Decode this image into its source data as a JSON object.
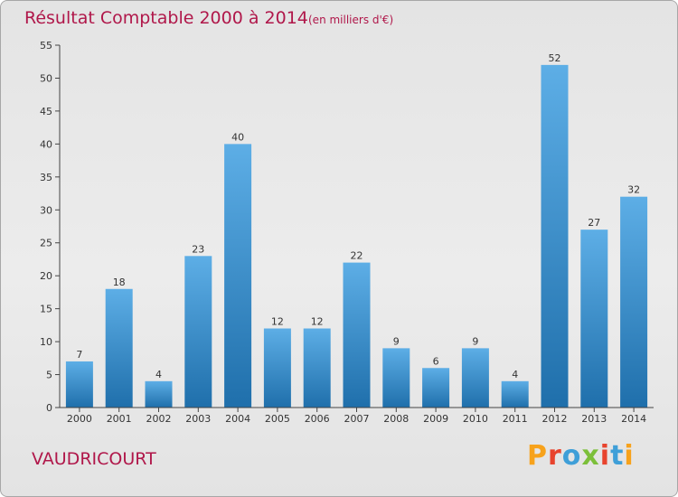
{
  "chart_data": {
    "type": "bar",
    "title": "Résultat Comptable 2000 à 2014",
    "subtitle": "(en milliers d'€)",
    "xlabel": "",
    "ylabel": "",
    "ylim": [
      0,
      55
    ],
    "yticks": [
      0,
      5,
      10,
      15,
      20,
      25,
      30,
      35,
      40,
      45,
      50,
      55
    ],
    "grid": false,
    "categories": [
      "2000",
      "2001",
      "2002",
      "2003",
      "2004",
      "2005",
      "2006",
      "2007",
      "2008",
      "2009",
      "2010",
      "2011",
      "2012",
      "2013",
      "2014"
    ],
    "values": [
      7,
      18,
      4,
      23,
      40,
      12,
      12,
      22,
      9,
      6,
      9,
      4,
      52,
      27,
      32
    ],
    "data_labels": [
      "7",
      "18",
      "4",
      "23",
      "40",
      "12",
      "12",
      "22",
      "9",
      "6",
      "9",
      "4",
      "52",
      "27",
      "32"
    ]
  },
  "place": "VAUDRICOURT",
  "brand": {
    "letters": [
      "P",
      "r",
      "o",
      "x",
      "i",
      "t",
      "i"
    ]
  },
  "colors": {
    "title": "#b0174a",
    "place": "#b0174a",
    "bar_top": "#5daee6",
    "bar_bottom": "#1f6fab",
    "axis": "#444444",
    "text": "#333333"
  }
}
